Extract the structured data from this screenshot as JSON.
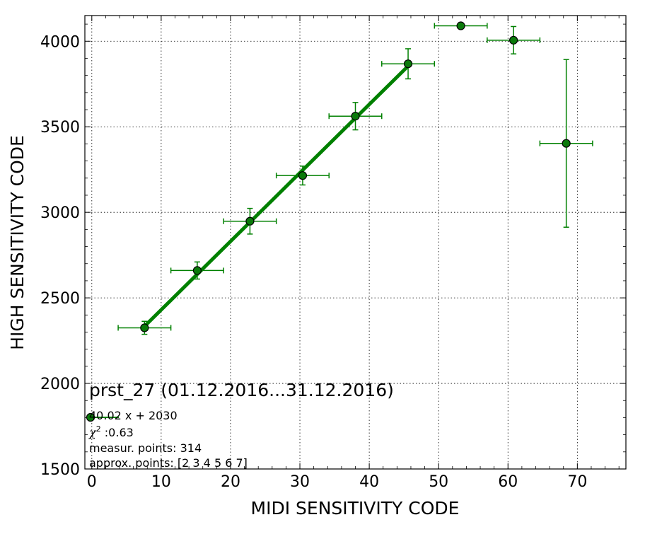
{
  "chart_data": {
    "type": "scatter",
    "xlabel": "MIDI SENSITIVITY CODE",
    "ylabel": "HIGH SENSITIVITY CODE",
    "xlim": [
      -1,
      77
    ],
    "ylim": [
      1500,
      4150
    ],
    "xticks": [
      0,
      10,
      20,
      30,
      40,
      50,
      60,
      70
    ],
    "yticks": [
      1500,
      2000,
      2500,
      3000,
      3500,
      4000
    ],
    "xtick_labels": [
      "0",
      "10",
      "20",
      "30",
      "40",
      "50",
      "60",
      "70"
    ],
    "ytick_labels": [
      "1500",
      "2000",
      "2500",
      "3000",
      "3500",
      "4000"
    ],
    "grid": true,
    "colors": {
      "series": "#008000",
      "marker_face": "#0a7a0a",
      "marker_edge": "#000000"
    },
    "series": [
      {
        "points": [
          {
            "x": 7.6,
            "y": 2325,
            "xerr": 3.8,
            "yerr": 38
          },
          {
            "x": 15.2,
            "y": 2660,
            "xerr": 3.8,
            "yerr": 50
          },
          {
            "x": 22.8,
            "y": 2948,
            "xerr": 3.8,
            "yerr": 75
          },
          {
            "x": 30.4,
            "y": 3215,
            "xerr": 3.8,
            "yerr": 55
          },
          {
            "x": 38.0,
            "y": 3562,
            "xerr": 3.8,
            "yerr": 80
          },
          {
            "x": 45.6,
            "y": 3868,
            "xerr": 3.8,
            "yerr": 88
          },
          {
            "x": 53.2,
            "y": 4090,
            "xerr": 3.8,
            "yerr": 0
          },
          {
            "x": 60.8,
            "y": 4006,
            "xerr": 3.8,
            "yerr": 80
          },
          {
            "x": 68.4,
            "y": 3403,
            "xerr": 3.8,
            "yerr": 490
          }
        ]
      }
    ],
    "fit": {
      "slope": 40.02,
      "intercept": 2030,
      "x_range": [
        7.6,
        45.6
      ]
    },
    "annotation": {
      "title": "prst_27 (01.12.2016...31.12.2016)",
      "equation": "40.02 x + 2030",
      "chi2_symbol": "χ",
      "chi2_exp": "2",
      "chi2_value": " :0.63",
      "measur_points": "measur. points: 314",
      "approx_points": "approx. points: [2 3 4 5 6 7]"
    }
  }
}
